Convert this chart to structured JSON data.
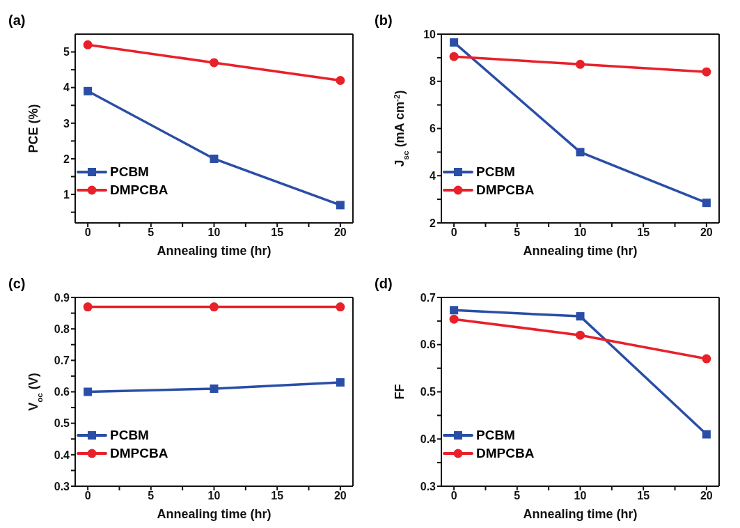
{
  "chart_data": [
    {
      "type": "line",
      "title": "(a)",
      "xlabel": "Annealing time (hr)",
      "ylabel": "PCE (%)",
      "x": [
        0,
        10,
        20
      ],
      "xlim": [
        -1,
        21
      ],
      "xticks": [
        0,
        {
          "value": 2.5,
          "label": null
        },
        5,
        {
          "value": 7.5,
          "label": null
        },
        10,
        {
          "value": 12.5,
          "label": null
        },
        15,
        {
          "value": 17.5,
          "label": null
        },
        20
      ],
      "ylim": [
        0.2,
        5.5
      ],
      "yticks": [
        {
          "value": 0.5,
          "label": null
        },
        1,
        {
          "value": 1.5,
          "label": null
        },
        2,
        {
          "value": 2.5,
          "label": null
        },
        3,
        {
          "value": 3.5,
          "label": null
        },
        4,
        {
          "value": 4.5,
          "label": null
        },
        5
      ],
      "legend": "bottom left",
      "series": [
        {
          "name": "PCBM",
          "color": "#2a4ea6",
          "marker": "square",
          "values": [
            3.9,
            2.0,
            0.7
          ]
        },
        {
          "name": "DMPCBA",
          "color": "#e8202a",
          "marker": "circle",
          "values": [
            5.2,
            4.7,
            4.2
          ]
        }
      ]
    },
    {
      "type": "line",
      "title": "(b)",
      "xlabel": "Annealing time (hr)",
      "ylabel": "J$_{sc}$ (mA cm$^{-2}$)",
      "x": [
        0,
        10,
        20
      ],
      "xlim": [
        -1,
        21
      ],
      "xticks": [
        0,
        {
          "value": 2.5,
          "label": null
        },
        5,
        {
          "value": 7.5,
          "label": null
        },
        10,
        {
          "value": 12.5,
          "label": null
        },
        15,
        {
          "value": 17.5,
          "label": null
        },
        20
      ],
      "ylim": [
        2,
        10
      ],
      "yticks": [
        2,
        {
          "value": 3,
          "label": null
        },
        4,
        {
          "value": 5,
          "label": null
        },
        6,
        {
          "value": 7,
          "label": null
        },
        8,
        {
          "value": 9,
          "label": null
        },
        10
      ],
      "legend": "bottom left",
      "series": [
        {
          "name": "PCBM",
          "color": "#2a4ea6",
          "marker": "square",
          "values": [
            9.65,
            5.0,
            2.85
          ]
        },
        {
          "name": "DMPCBA",
          "color": "#e8202a",
          "marker": "circle",
          "values": [
            9.05,
            8.72,
            8.4
          ]
        }
      ]
    },
    {
      "type": "line",
      "title": "(c)",
      "xlabel": "Annealing time (hr)",
      "ylabel": "V$_{oc}$ (V)",
      "x": [
        0,
        10,
        20
      ],
      "xlim": [
        -1,
        21
      ],
      "xticks": [
        0,
        {
          "value": 2.5,
          "label": null
        },
        5,
        {
          "value": 7.5,
          "label": null
        },
        10,
        {
          "value": 12.5,
          "label": null
        },
        15,
        {
          "value": 17.5,
          "label": null
        },
        20
      ],
      "ylim": [
        0.3,
        0.9
      ],
      "yticks": [
        0.3,
        {
          "value": 0.35,
          "label": null
        },
        0.4,
        {
          "value": 0.45,
          "label": null
        },
        0.5,
        {
          "value": 0.55,
          "label": null
        },
        0.6,
        {
          "value": 0.65,
          "label": null
        },
        0.7,
        {
          "value": 0.75,
          "label": null
        },
        0.8,
        {
          "value": 0.85,
          "label": null
        },
        0.9
      ],
      "legend": "bottom left",
      "series": [
        {
          "name": "PCBM",
          "color": "#2a4ea6",
          "marker": "square",
          "values": [
            0.6,
            0.61,
            0.63
          ]
        },
        {
          "name": "DMPCBA",
          "color": "#e8202a",
          "marker": "circle",
          "values": [
            0.87,
            0.87,
            0.87
          ]
        }
      ]
    },
    {
      "type": "line",
      "title": "(d)",
      "xlabel": "Annealing time (hr)",
      "ylabel": "FF",
      "x": [
        0,
        10,
        20
      ],
      "xlim": [
        -1,
        21
      ],
      "xticks": [
        0,
        {
          "value": 2.5,
          "label": null
        },
        5,
        {
          "value": 7.5,
          "label": null
        },
        10,
        {
          "value": 12.5,
          "label": null
        },
        15,
        {
          "value": 17.5,
          "label": null
        },
        20
      ],
      "ylim": [
        0.3,
        0.7
      ],
      "yticks": [
        0.3,
        {
          "value": 0.35,
          "label": null
        },
        0.4,
        {
          "value": 0.45,
          "label": null
        },
        0.5,
        {
          "value": 0.55,
          "label": null
        },
        0.6,
        {
          "value": 0.65,
          "label": null
        },
        0.7
      ],
      "legend": "bottom left",
      "series": [
        {
          "name": "PCBM",
          "color": "#2a4ea6",
          "marker": "square",
          "values": [
            0.673,
            0.66,
            0.41
          ]
        },
        {
          "name": "DMPCBA",
          "color": "#e8202a",
          "marker": "circle",
          "values": [
            0.654,
            0.62,
            0.57
          ]
        }
      ]
    }
  ]
}
